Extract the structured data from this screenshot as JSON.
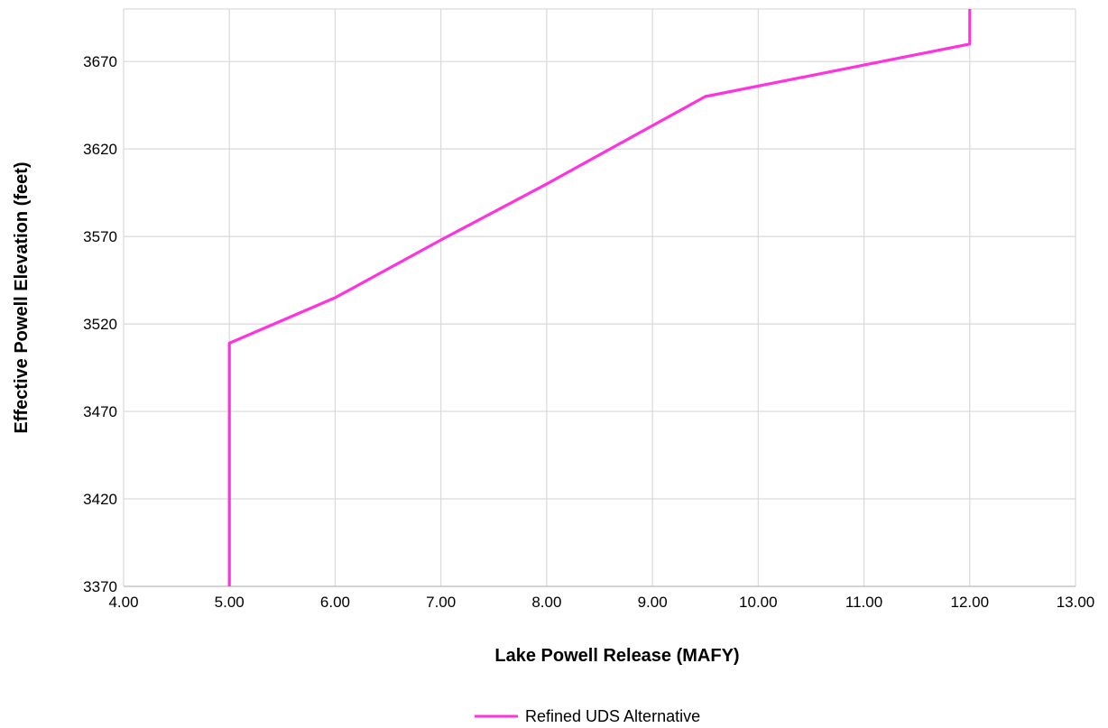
{
  "chart_data": {
    "type": "line",
    "title": "",
    "xlabel": "Lake Powell Release (MAFY)",
    "ylabel": "Effective Powell Elevation (feet)",
    "xlim": [
      4,
      13
    ],
    "ylim": [
      3370,
      3700
    ],
    "xticks": [
      "4.00",
      "5.00",
      "6.00",
      "7.00",
      "8.00",
      "9.00",
      "10.00",
      "11.00",
      "12.00",
      "13.00"
    ],
    "xtick_values": [
      4,
      5,
      6,
      7,
      8,
      9,
      10,
      11,
      12,
      13
    ],
    "yticks": [
      "3370",
      "3420",
      "3470",
      "3520",
      "3570",
      "3620",
      "3670"
    ],
    "ytick_values": [
      3370,
      3420,
      3470,
      3520,
      3570,
      3620,
      3670
    ],
    "grid": true,
    "legend_position": "bottom-center",
    "series": [
      {
        "name": "Refined UDS Alternative",
        "color": "#ff33dd",
        "x": [
          5.0,
          5.0,
          6.0,
          7.0,
          8.0,
          9.5,
          12.0,
          12.0
        ],
        "y": [
          3370,
          3509,
          3535,
          3568,
          3600,
          3650,
          3680,
          3700
        ]
      }
    ]
  }
}
